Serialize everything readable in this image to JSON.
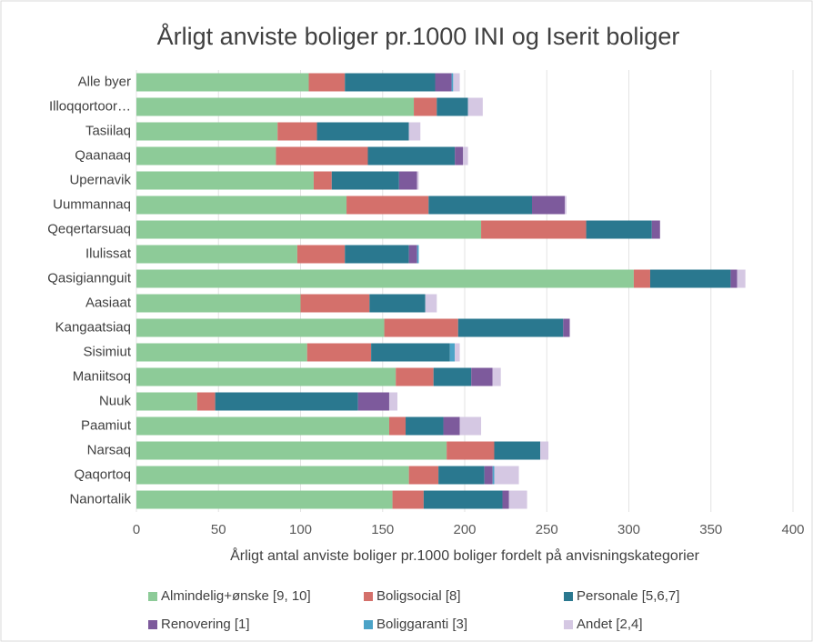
{
  "chart_data": {
    "type": "stacked_barh",
    "title": "Årligt anviste boliger pr.1000 INI og Iserit boliger",
    "x_label": "Årligt antal anviste boliger pr.1000 boliger fordelt på anvisningskategorier",
    "categories": [
      "Alle byer",
      "Illoqqortoor…",
      "Tasiilaq",
      "Qaanaaq",
      "Upernavik",
      "Uummannaq",
      "Qeqertarsuaq",
      "Ilulissat",
      "Qasigiannguit",
      "Aasiaat",
      "Kangaatsiaq",
      "Sisimiut",
      "Maniitsoq",
      "Nuuk",
      "Paamiut",
      "Narsaq",
      "Qaqortoq",
      "Nanortalik"
    ],
    "series": [
      {
        "name": "Almindelig+ønske [9, 10]",
        "color": "#8dcb98",
        "values": [
          105,
          169,
          86,
          85,
          108,
          128,
          210,
          98,
          303,
          100,
          151,
          104,
          158,
          37,
          154,
          189,
          166,
          156
        ]
      },
      {
        "name": "Boligsocial [8]",
        "color": "#d4706b",
        "values": [
          22,
          14,
          24,
          56,
          11,
          50,
          64,
          29,
          10,
          42,
          45,
          39,
          23,
          11,
          10,
          29,
          18,
          19
        ]
      },
      {
        "name": "Personale [5,6,7]",
        "color": "#2a788f",
        "values": [
          55,
          19,
          56,
          53,
          41,
          63,
          40,
          39,
          49,
          34,
          64,
          48,
          23,
          87,
          23,
          28,
          28,
          48
        ]
      },
      {
        "name": "Renovering [1]",
        "color": "#7d5a9c",
        "values": [
          10,
          0,
          0,
          5,
          11,
          20,
          5,
          5,
          4,
          0,
          4,
          0,
          13,
          19,
          10,
          0,
          5,
          4
        ]
      },
      {
        "name": "Boliggaranti [3]",
        "color": "#4ba3c7",
        "values": [
          1,
          0,
          0,
          0,
          0,
          0,
          0,
          1,
          0,
          0,
          0,
          3,
          0,
          0,
          0,
          0,
          1,
          0
        ]
      },
      {
        "name": "Andet [2,4]",
        "color": "#d5c8e3",
        "values": [
          4,
          9,
          7,
          3,
          1,
          1,
          0,
          0,
          5,
          7,
          0,
          3,
          5,
          5,
          13,
          5,
          15,
          11
        ]
      }
    ],
    "xlim": [
      0,
      400
    ],
    "xticks": [
      0,
      50,
      100,
      150,
      200,
      250,
      300,
      350,
      400
    ],
    "grid": true,
    "legend": "bottom"
  }
}
